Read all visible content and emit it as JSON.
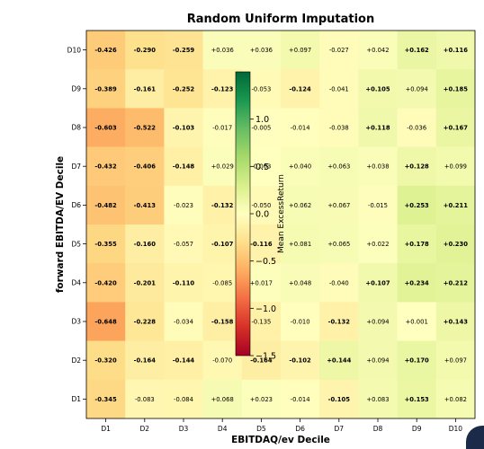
{
  "chart_data": {
    "type": "heatmap",
    "title": "Random Uniform Imputation",
    "xlabel": "EBITDAQ/ev Decile",
    "ylabel": "forward EBITDA/EV Decile",
    "x_categories": [
      "D1",
      "D2",
      "D3",
      "D4",
      "D5",
      "D6",
      "D7",
      "D8",
      "D9",
      "D10"
    ],
    "y_categories": [
      "D10",
      "D9",
      "D8",
      "D7",
      "D6",
      "D5",
      "D4",
      "D3",
      "D2",
      "D1"
    ],
    "values": [
      [
        -0.426,
        -0.29,
        -0.259,
        0.036,
        0.036,
        0.097,
        -0.027,
        0.042,
        0.162,
        0.116
      ],
      [
        -0.389,
        -0.161,
        -0.252,
        -0.123,
        -0.053,
        -0.124,
        -0.041,
        0.105,
        0.094,
        0.185
      ],
      [
        -0.603,
        -0.522,
        -0.103,
        -0.017,
        -0.005,
        -0.014,
        -0.038,
        0.118,
        -0.036,
        0.167
      ],
      [
        -0.432,
        -0.406,
        -0.148,
        0.029,
        -0.003,
        0.04,
        0.063,
        0.038,
        0.128,
        0.099
      ],
      [
        -0.482,
        -0.413,
        -0.023,
        -0.132,
        -0.05,
        0.062,
        0.067,
        -0.015,
        0.253,
        0.211
      ],
      [
        -0.355,
        -0.16,
        -0.057,
        -0.107,
        -0.116,
        0.081,
        0.065,
        0.022,
        0.178,
        0.23
      ],
      [
        -0.42,
        -0.201,
        -0.11,
        -0.085,
        0.017,
        0.048,
        -0.04,
        0.107,
        0.234,
        0.212
      ],
      [
        -0.648,
        -0.228,
        -0.034,
        -0.158,
        -0.135,
        -0.01,
        -0.132,
        0.094,
        0.001,
        0.143
      ],
      [
        -0.32,
        -0.164,
        -0.144,
        -0.07,
        -0.164,
        -0.102,
        0.144,
        0.094,
        0.17,
        0.097
      ],
      [
        -0.345,
        -0.083,
        -0.084,
        0.068,
        0.023,
        -0.014,
        -0.105,
        0.083,
        0.153,
        0.082
      ]
    ],
    "labels": [
      [
        "-0.426",
        "-0.290",
        "-0.259",
        "+0.036",
        "+0.036",
        "+0.097",
        "-0.027",
        "+0.042",
        "+0.162",
        "+0.116"
      ],
      [
        "-0.389",
        "-0.161",
        "-0.252",
        "-0.123",
        "-0.053",
        "-0.124",
        "-0.041",
        "+0.105",
        "+0.094",
        "+0.185"
      ],
      [
        "-0.603",
        "-0.522",
        "-0.103",
        "-0.017",
        "-0.005",
        "-0.014",
        "-0.038",
        "+0.118",
        "-0.036",
        "+0.167"
      ],
      [
        "-0.432",
        "-0.406",
        "-0.148",
        "+0.029",
        "-0.003",
        "+0.040",
        "+0.063",
        "+0.038",
        "+0.128",
        "+0.099"
      ],
      [
        "-0.482",
        "-0.413",
        "-0.023",
        "-0.132",
        "-0.050",
        "+0.062",
        "+0.067",
        "-0.015",
        "+0.253",
        "+0.211"
      ],
      [
        "-0.355",
        "-0.160",
        "-0.057",
        "-0.107",
        "-0.116",
        "+0.081",
        "+0.065",
        "+0.022",
        "+0.178",
        "+0.230"
      ],
      [
        "-0.420",
        "-0.201",
        "-0.110",
        "-0.085",
        "+0.017",
        "+0.048",
        "-0.040",
        "+0.107",
        "+0.234",
        "+0.212"
      ],
      [
        "-0.648",
        "-0.228",
        "-0.034",
        "-0.158",
        "-0.135",
        "-0.010",
        "-0.132",
        "+0.094",
        "+0.001",
        "+0.143"
      ],
      [
        "-0.320",
        "-0.164",
        "-0.144",
        "-0.070",
        "-0.164",
        "-0.102",
        "+0.144",
        "+0.094",
        "+0.170",
        "+0.097"
      ],
      [
        "-0.345",
        "-0.083",
        "-0.084",
        "+0.068",
        "+0.023",
        "-0.014",
        "-0.105",
        "+0.083",
        "+0.153",
        "+0.082"
      ]
    ],
    "bold": [
      [
        true,
        true,
        true,
        false,
        false,
        false,
        false,
        false,
        true,
        true
      ],
      [
        true,
        true,
        true,
        true,
        false,
        true,
        false,
        true,
        false,
        true
      ],
      [
        true,
        true,
        true,
        false,
        false,
        false,
        false,
        true,
        false,
        true
      ],
      [
        true,
        true,
        true,
        false,
        false,
        false,
        false,
        false,
        true,
        false
      ],
      [
        true,
        true,
        false,
        true,
        false,
        false,
        false,
        false,
        true,
        true
      ],
      [
        true,
        true,
        false,
        true,
        true,
        false,
        false,
        false,
        true,
        true
      ],
      [
        true,
        true,
        true,
        false,
        false,
        false,
        false,
        true,
        true,
        true
      ],
      [
        true,
        true,
        false,
        true,
        false,
        false,
        true,
        false,
        false,
        true
      ],
      [
        true,
        true,
        true,
        false,
        true,
        true,
        true,
        false,
        true,
        false
      ],
      [
        true,
        false,
        false,
        false,
        false,
        false,
        true,
        false,
        true,
        false
      ]
    ],
    "colormap": "RdYlGn",
    "color_range": [
      -1.5,
      1.5
    ],
    "colorbar": {
      "label": "Mean ExcessReturn",
      "ticks": [
        1.0,
        0.5,
        0.0,
        -0.5,
        -1.0,
        -1.5
      ],
      "tick_labels": [
        "1.0",
        "0.5",
        "0.0",
        "−0.5",
        "−1.0",
        "−1.5"
      ]
    }
  }
}
